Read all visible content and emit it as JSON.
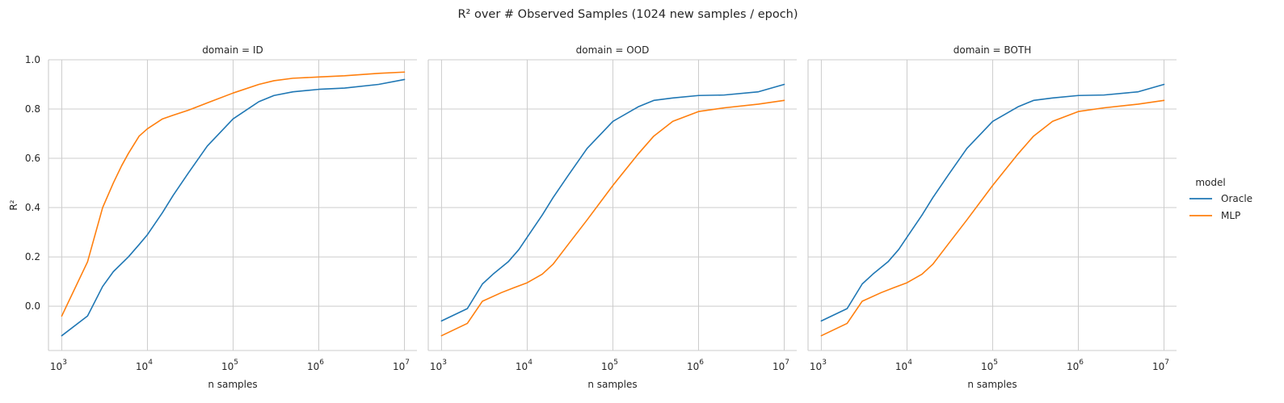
{
  "suptitle": "R² over # Observed Samples (1024 new samples / epoch)",
  "legend": {
    "title": "model",
    "placement": "right"
  },
  "colors": {
    "Oracle": "#1f77b4",
    "MLP": "#ff7f0e",
    "grid": "#cccccc",
    "spine": "#cccccc"
  },
  "chart_data": [
    {
      "type": "line",
      "title": "domain = ID",
      "xlabel": "n samples",
      "ylabel": "R²",
      "xscale": "log",
      "xlim": [
        700,
        14000000
      ],
      "ylim": [
        -0.18,
        1.0
      ],
      "xticks": [
        1000,
        10000,
        100000,
        1000000,
        10000000
      ],
      "xtick_labels": [
        [
          "10",
          "3"
        ],
        [
          "10",
          "4"
        ],
        [
          "10",
          "5"
        ],
        [
          "10",
          "6"
        ],
        [
          "10",
          "7"
        ]
      ],
      "yticks": [
        0.0,
        0.2,
        0.4,
        0.6,
        0.8,
        1.0
      ],
      "ytick_labels": [
        "0.0",
        "0.2",
        "0.4",
        "0.6",
        "0.8",
        "1.0"
      ],
      "grid": true,
      "series": [
        {
          "name": "Oracle",
          "x": [
            1000,
            2000,
            3000,
            4000,
            6000,
            8000,
            10000,
            15000,
            20000,
            30000,
            50000,
            100000,
            200000,
            300000,
            500000,
            1000000,
            2000000,
            5000000,
            10000000
          ],
          "y": [
            -0.12,
            -0.04,
            0.08,
            0.14,
            0.2,
            0.25,
            0.29,
            0.38,
            0.45,
            0.54,
            0.65,
            0.76,
            0.83,
            0.855,
            0.87,
            0.88,
            0.885,
            0.9,
            0.92
          ]
        },
        {
          "name": "MLP",
          "x": [
            1000,
            2000,
            3000,
            4000,
            5000,
            6000,
            8000,
            10000,
            15000,
            20000,
            30000,
            50000,
            100000,
            200000,
            300000,
            500000,
            1000000,
            2000000,
            5000000,
            10000000
          ],
          "y": [
            -0.04,
            0.18,
            0.4,
            0.5,
            0.57,
            0.62,
            0.69,
            0.72,
            0.76,
            0.775,
            0.795,
            0.825,
            0.865,
            0.9,
            0.915,
            0.925,
            0.93,
            0.935,
            0.945,
            0.95
          ]
        }
      ]
    },
    {
      "type": "line",
      "title": "domain = OOD",
      "xlabel": "n samples",
      "ylabel": "",
      "xscale": "log",
      "xlim": [
        700,
        14000000
      ],
      "ylim": [
        -0.18,
        1.0
      ],
      "xticks": [
        1000,
        10000,
        100000,
        1000000,
        10000000
      ],
      "xtick_labels": [
        [
          "10",
          "3"
        ],
        [
          "10",
          "4"
        ],
        [
          "10",
          "5"
        ],
        [
          "10",
          "6"
        ],
        [
          "10",
          "7"
        ]
      ],
      "grid": true,
      "series": [
        {
          "name": "Oracle",
          "x": [
            1000,
            2000,
            3000,
            4000,
            6000,
            8000,
            10000,
            15000,
            20000,
            30000,
            50000,
            100000,
            200000,
            300000,
            500000,
            1000000,
            2000000,
            5000000,
            10000000
          ],
          "y": [
            -0.06,
            -0.01,
            0.09,
            0.13,
            0.18,
            0.23,
            0.28,
            0.37,
            0.44,
            0.53,
            0.64,
            0.75,
            0.81,
            0.835,
            0.845,
            0.855,
            0.857,
            0.87,
            0.9
          ]
        },
        {
          "name": "MLP",
          "x": [
            1000,
            2000,
            3000,
            5000,
            7000,
            10000,
            15000,
            20000,
            30000,
            50000,
            100000,
            200000,
            300000,
            500000,
            1000000,
            2000000,
            5000000,
            10000000
          ],
          "y": [
            -0.12,
            -0.07,
            0.02,
            0.055,
            0.075,
            0.095,
            0.13,
            0.17,
            0.25,
            0.35,
            0.49,
            0.62,
            0.69,
            0.75,
            0.79,
            0.805,
            0.82,
            0.835
          ]
        }
      ]
    },
    {
      "type": "line",
      "title": "domain = BOTH",
      "xlabel": "n samples",
      "ylabel": "",
      "xscale": "log",
      "xlim": [
        700,
        14000000
      ],
      "ylim": [
        -0.18,
        1.0
      ],
      "xticks": [
        1000,
        10000,
        100000,
        1000000,
        10000000
      ],
      "xtick_labels": [
        [
          "10",
          "3"
        ],
        [
          "10",
          "4"
        ],
        [
          "10",
          "5"
        ],
        [
          "10",
          "6"
        ],
        [
          "10",
          "7"
        ]
      ],
      "grid": true,
      "series": [
        {
          "name": "Oracle",
          "x": [
            1000,
            2000,
            3000,
            4000,
            6000,
            8000,
            10000,
            15000,
            20000,
            30000,
            50000,
            100000,
            200000,
            300000,
            500000,
            1000000,
            2000000,
            5000000,
            10000000
          ],
          "y": [
            -0.06,
            -0.01,
            0.09,
            0.13,
            0.18,
            0.23,
            0.28,
            0.37,
            0.44,
            0.53,
            0.64,
            0.75,
            0.81,
            0.835,
            0.845,
            0.855,
            0.857,
            0.87,
            0.9
          ]
        },
        {
          "name": "MLP",
          "x": [
            1000,
            2000,
            3000,
            5000,
            7000,
            10000,
            15000,
            20000,
            30000,
            50000,
            100000,
            200000,
            300000,
            500000,
            1000000,
            2000000,
            5000000,
            10000000
          ],
          "y": [
            -0.12,
            -0.07,
            0.02,
            0.055,
            0.075,
            0.095,
            0.13,
            0.17,
            0.25,
            0.35,
            0.49,
            0.62,
            0.69,
            0.75,
            0.79,
            0.805,
            0.82,
            0.835
          ]
        }
      ]
    }
  ]
}
